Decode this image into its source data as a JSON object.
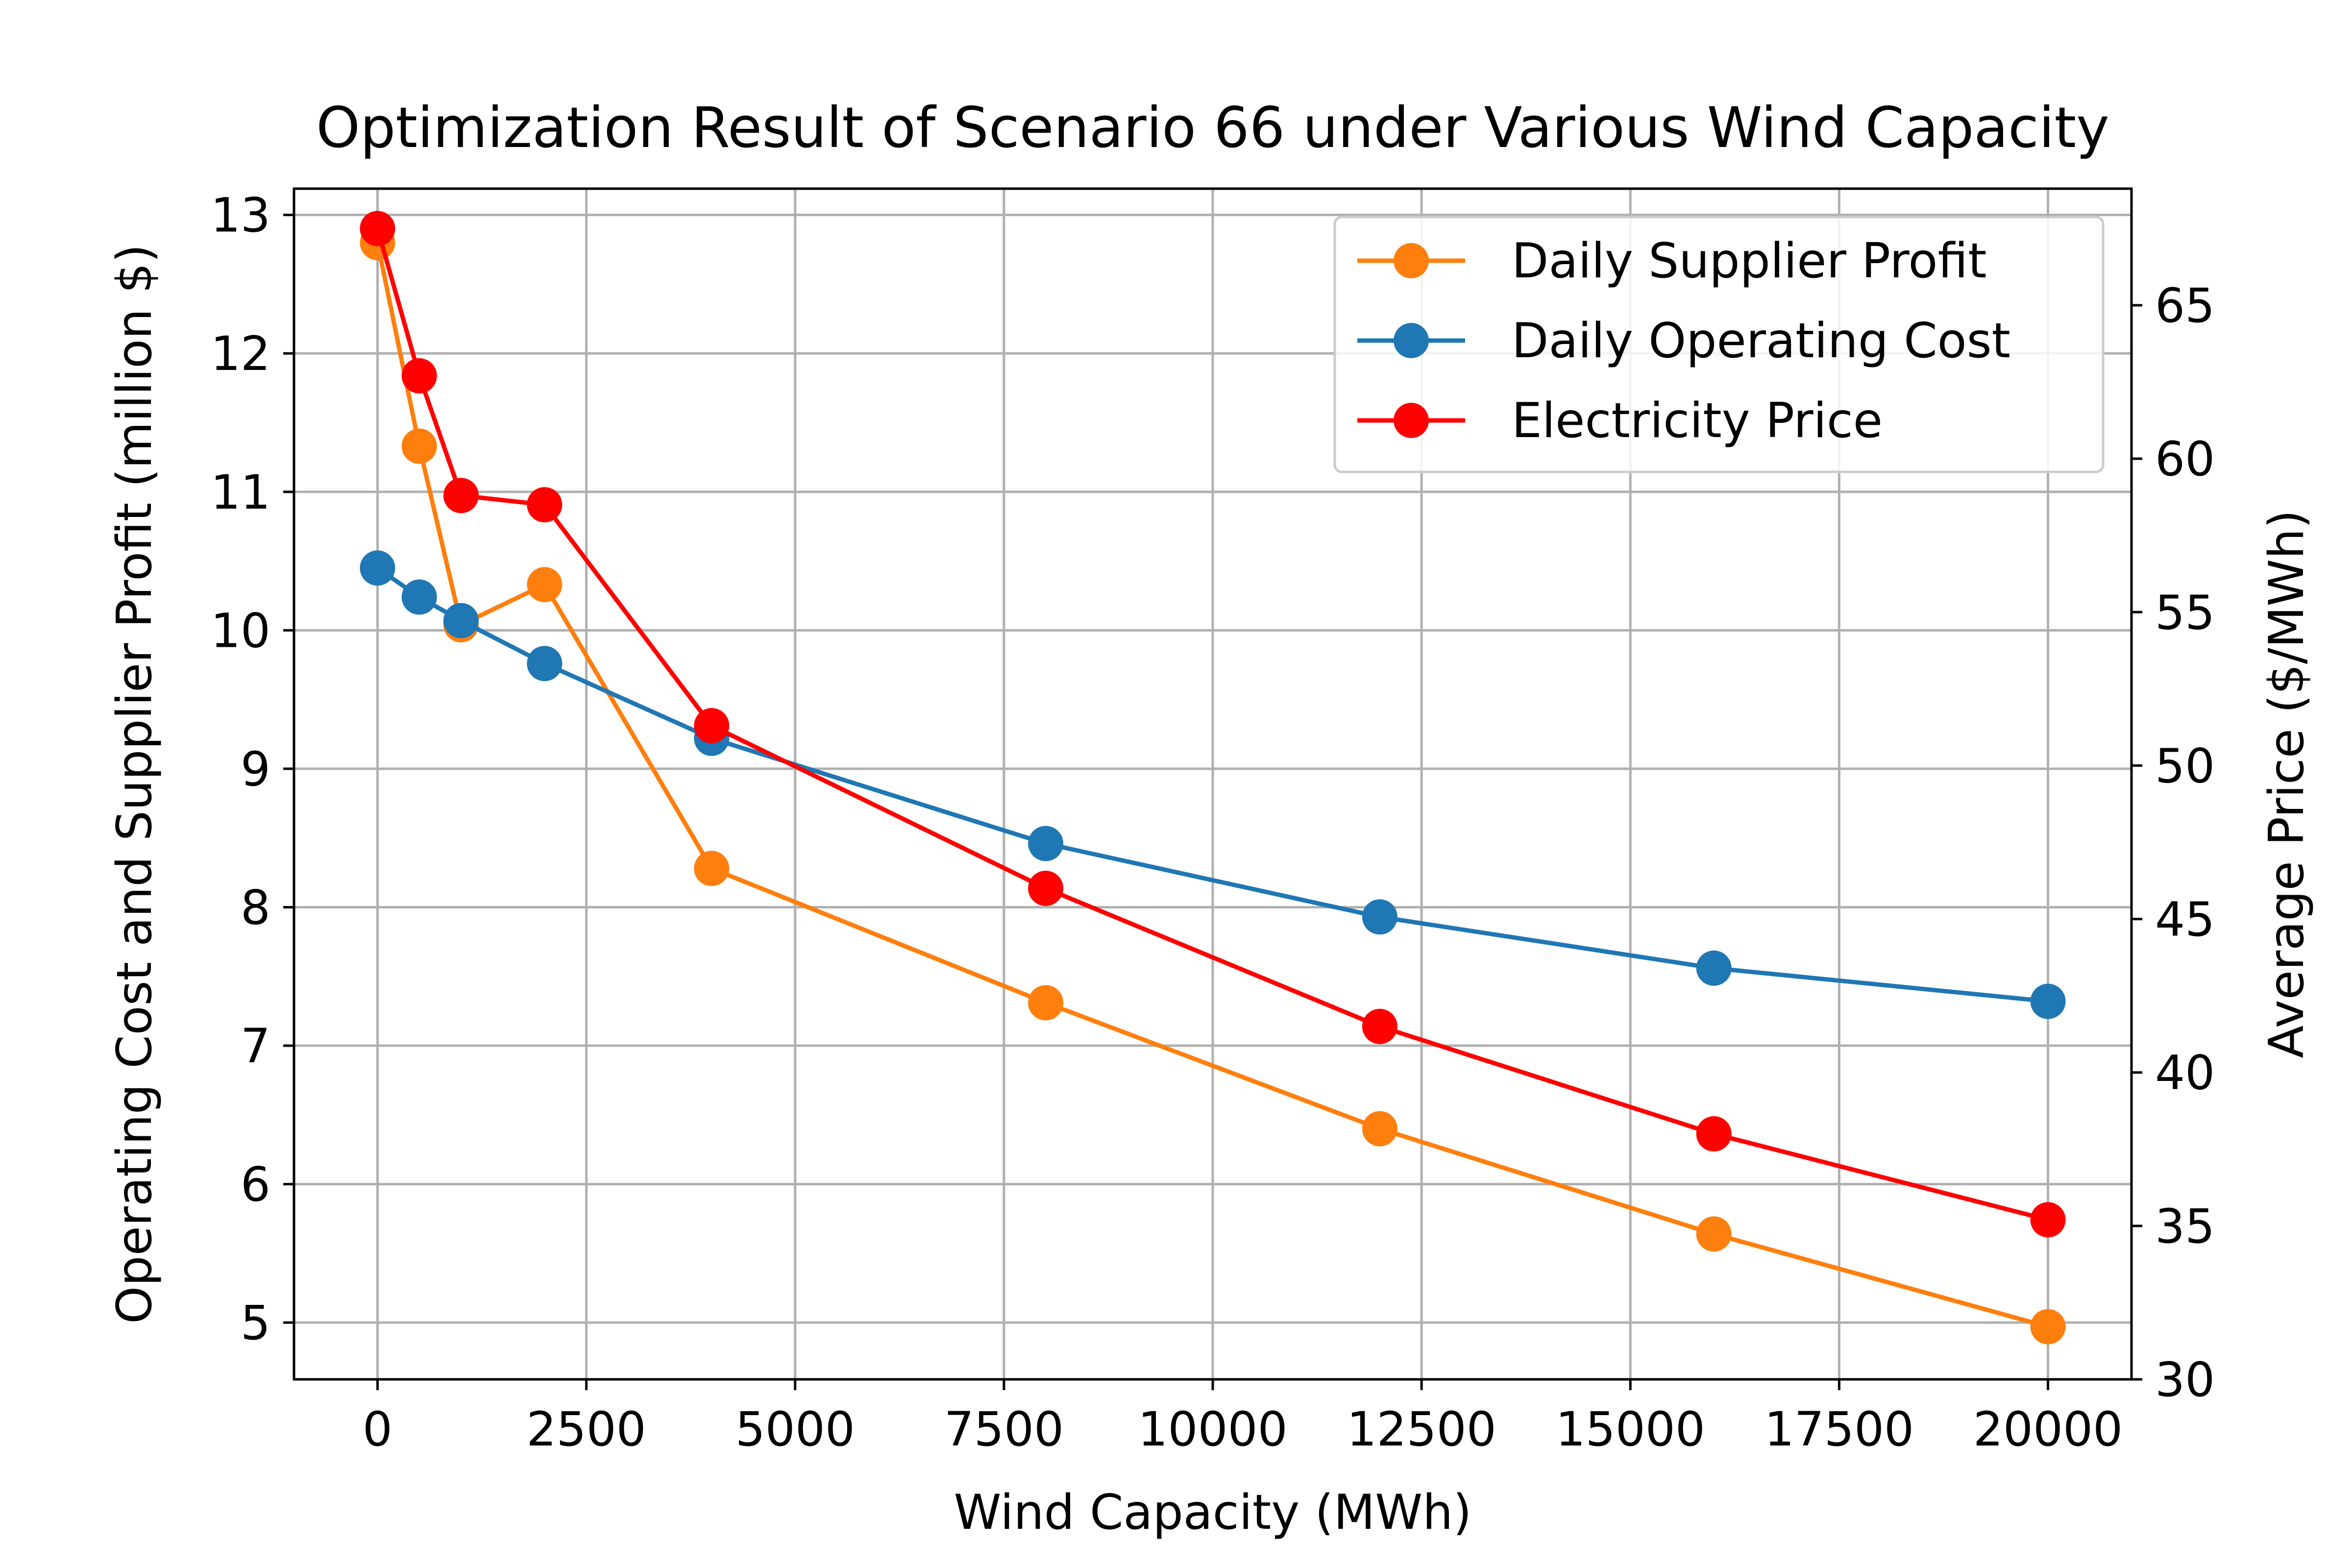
{
  "chart_data": {
    "type": "line",
    "title": "Optimization Result of Scenario 66 under Various Wind Capacity",
    "xlabel": "Wind Capacity (MWh)",
    "ylabel": "Operating Cost and Supplier Profit (million $)",
    "y2label": "Average Price ($/MWh)",
    "x": [
      0,
      500,
      1000,
      2000,
      4000,
      8000,
      12000,
      16000,
      20000
    ],
    "xlim": [
      -1000,
      21000
    ],
    "ylim": [
      4.59,
      13.19
    ],
    "y2lim": [
      30,
      68.8
    ],
    "xticks": [
      "0",
      "2500",
      "5000",
      "7500",
      "10000",
      "12500",
      "15000",
      "17500",
      "20000"
    ],
    "yticks": [
      "5",
      "6",
      "7",
      "8",
      "9",
      "10",
      "11",
      "12",
      "13"
    ],
    "y2ticks": [
      "30",
      "35",
      "40",
      "45",
      "50",
      "55",
      "60",
      "65"
    ],
    "grid": true,
    "legend_position": "upper-right",
    "series": [
      {
        "name": "Daily Supplier Profit",
        "axis": "left",
        "color": "#ff7f0e",
        "values": [
          12.8,
          11.33,
          10.04,
          10.33,
          8.28,
          7.31,
          6.4,
          5.64,
          4.97
        ]
      },
      {
        "name": "Daily Operating Cost",
        "axis": "left",
        "color": "#1f77b4",
        "values": [
          10.45,
          10.24,
          10.07,
          9.76,
          9.22,
          8.46,
          7.93,
          7.56,
          7.32
        ]
      },
      {
        "name": "Electricity Price",
        "axis": "right",
        "color": "#ff0000",
        "values": [
          67.5,
          62.7,
          58.8,
          58.5,
          51.3,
          46.0,
          41.5,
          38.0,
          35.2
        ]
      }
    ]
  }
}
